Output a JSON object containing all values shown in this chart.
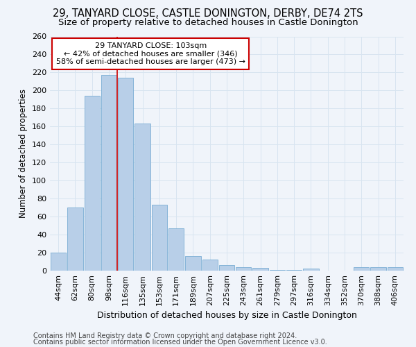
{
  "title1": "29, TANYARD CLOSE, CASTLE DONINGTON, DERBY, DE74 2TS",
  "title2": "Size of property relative to detached houses in Castle Donington",
  "xlabel": "Distribution of detached houses by size in Castle Donington",
  "ylabel": "Number of detached properties",
  "categories": [
    "44sqm",
    "62sqm",
    "80sqm",
    "98sqm",
    "116sqm",
    "135sqm",
    "153sqm",
    "171sqm",
    "189sqm",
    "207sqm",
    "225sqm",
    "243sqm",
    "261sqm",
    "279sqm",
    "297sqm",
    "316sqm",
    "334sqm",
    "352sqm",
    "370sqm",
    "388sqm",
    "406sqm"
  ],
  "values": [
    20,
    70,
    194,
    217,
    214,
    163,
    73,
    47,
    16,
    12,
    6,
    4,
    3,
    1,
    1,
    2,
    0,
    0,
    4,
    4,
    4
  ],
  "bar_color": "#b8cfe8",
  "bar_edgecolor": "#7aadd4",
  "vline_x": 3.5,
  "vline_color": "#cc0000",
  "annotation_text": "29 TANYARD CLOSE: 103sqm\n← 42% of detached houses are smaller (346)\n58% of semi-detached houses are larger (473) →",
  "annotation_box_color": "#ffffff",
  "annotation_box_edgecolor": "#cc0000",
  "ylim": [
    0,
    260
  ],
  "yticks": [
    0,
    20,
    40,
    60,
    80,
    100,
    120,
    140,
    160,
    180,
    200,
    220,
    240,
    260
  ],
  "footer1": "Contains HM Land Registry data © Crown copyright and database right 2024.",
  "footer2": "Contains public sector information licensed under the Open Government Licence v3.0.",
  "bg_color": "#f0f4fa",
  "grid_color": "#d8e4f0",
  "title1_fontsize": 10.5,
  "title2_fontsize": 9.5,
  "xlabel_fontsize": 9,
  "ylabel_fontsize": 8.5,
  "tick_fontsize": 8,
  "footer_fontsize": 7
}
